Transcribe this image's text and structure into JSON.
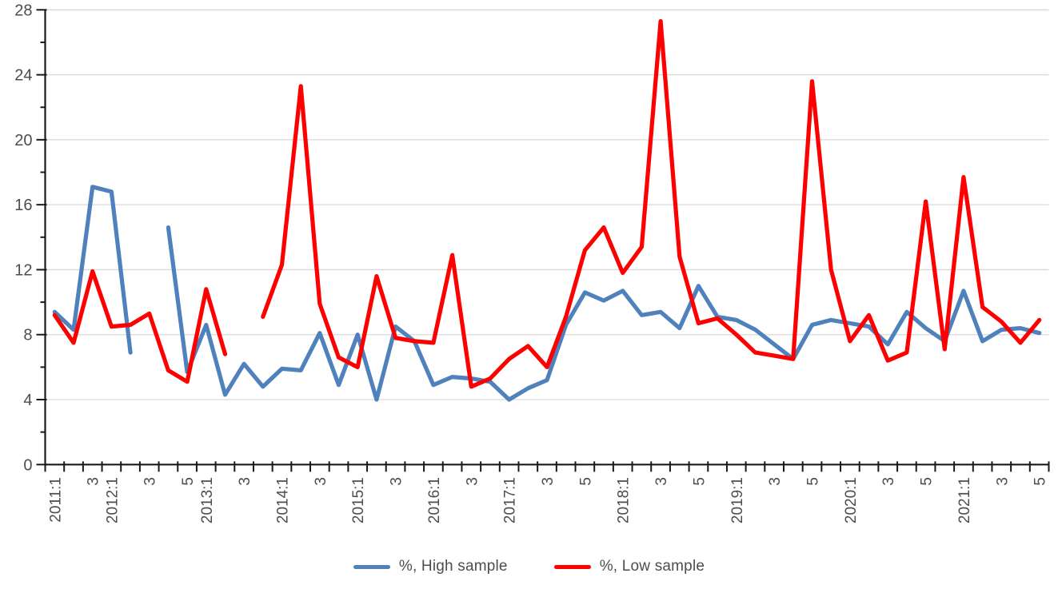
{
  "chart_data": {
    "type": "line",
    "title": "",
    "xlabel": "",
    "ylabel": "",
    "ylim": [
      0,
      28
    ],
    "ytick_step": 4,
    "ytick_minor_step": 2,
    "ytick_labels": [
      "0",
      "4",
      "8",
      "12",
      "16",
      "20",
      "24",
      "28"
    ],
    "grid": true,
    "legend_position": "bottom",
    "categories": [
      "2011:1",
      "",
      "3",
      "2012:1",
      "",
      "3",
      "",
      "5",
      "2013:1",
      "",
      "3",
      "",
      "2014:1",
      "",
      "3",
      "",
      "2015:1",
      "",
      "3",
      "",
      "2016:1",
      "",
      "3",
      "",
      "2017:1",
      "",
      "3",
      "",
      "5",
      "",
      "2018:1",
      "",
      "3",
      "",
      "5",
      "",
      "2019:1",
      "",
      "3",
      "",
      "5",
      "",
      "2020:1",
      "",
      "3",
      "",
      "5",
      "",
      "2021:1",
      "",
      "3",
      "",
      "5"
    ],
    "series": [
      {
        "name": "%, High sample",
        "color": "#4F81BD",
        "values": [
          9.4,
          8.3,
          17.1,
          16.8,
          6.9,
          null,
          14.6,
          5.7,
          8.6,
          4.3,
          6.2,
          4.8,
          5.9,
          5.8,
          8.1,
          4.9,
          8.0,
          4.0,
          8.5,
          7.6,
          4.9,
          5.4,
          5.3,
          5.1,
          4.0,
          4.7,
          5.2,
          8.6,
          10.6,
          10.1,
          10.7,
          9.2,
          9.4,
          8.4,
          11.0,
          9.1,
          8.9,
          8.3,
          7.4,
          6.5,
          8.6,
          8.9,
          8.7,
          8.5,
          7.4,
          9.4,
          8.4,
          7.6,
          10.7,
          7.6,
          8.3,
          8.4,
          8.1
        ]
      },
      {
        "name": "%, Low sample",
        "color": "#FE0000",
        "values": [
          9.2,
          7.5,
          11.9,
          8.5,
          8.6,
          9.3,
          5.8,
          5.1,
          10.8,
          6.8,
          null,
          9.1,
          12.3,
          23.3,
          9.9,
          6.6,
          6.0,
          11.6,
          7.8,
          7.6,
          7.5,
          12.9,
          4.8,
          5.3,
          6.5,
          7.3,
          6.0,
          9.1,
          13.2,
          14.6,
          11.8,
          13.4,
          27.3,
          12.8,
          8.7,
          9.0,
          8.0,
          6.9,
          6.7,
          6.5,
          23.6,
          12.0,
          7.6,
          9.2,
          6.4,
          6.9,
          16.2,
          7.1,
          17.7,
          9.7,
          8.8,
          7.5,
          8.9
        ]
      }
    ],
    "colors": {
      "gridline": "#d9d9d9",
      "axis": "#1a1a1a",
      "tick": "#1a1a1a",
      "tick_label": "#4d4d4d"
    }
  }
}
